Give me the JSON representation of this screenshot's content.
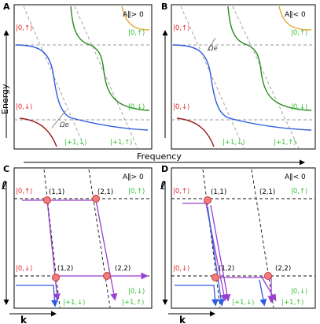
{
  "panels": {
    "A": {
      "letter": "A",
      "title": "A‖> 0"
    },
    "B": {
      "letter": "B",
      "title": "A‖< 0"
    },
    "C": {
      "letter": "C",
      "title": "A‖> 0"
    },
    "D": {
      "letter": "D",
      "title": "A‖< 0"
    }
  },
  "axes": {
    "energy": "Energy",
    "frequency": "Frequency",
    "ell": "ℓ",
    "k": "k"
  },
  "states": {
    "zero_up": "|0,↑⟩",
    "zero_down": "|0,↓⟩",
    "plus_one_down": "|+1,↓⟩",
    "plus_one_up": "|+1,↑⟩"
  },
  "omega": "Ωe",
  "points": {
    "p11": "(1,1)",
    "p21": "(2,1)",
    "p12": "(1,2)",
    "p22": "(2,2)"
  },
  "colors": {
    "red_state": "#e3262b",
    "green_state": "#34c234",
    "blue_curve": "#2d5ce0",
    "green_curve": "#2a8a1e",
    "orange_curve": "#e4a62b",
    "darkred_curve": "#9b1b1b",
    "purple_path": "#9a3fd0",
    "marker_fill": "#f27c7c",
    "marker_stroke": "#c23a3a"
  }
}
